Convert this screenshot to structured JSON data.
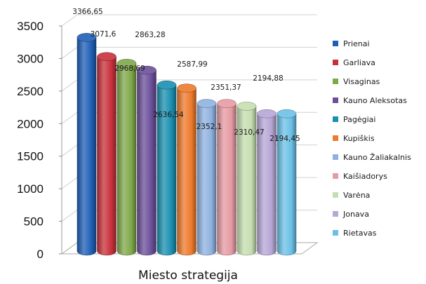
{
  "chart_data": {
    "type": "bar",
    "style": "3d-cylinder",
    "xlabel": "Miesto strategija",
    "ylabel": "",
    "ylim": [
      0,
      3500
    ],
    "yticks": [
      0,
      500,
      1000,
      1500,
      2000,
      2500,
      3000,
      3500
    ],
    "grid": true,
    "legend_position": "right",
    "categories": [
      "Prienai",
      "Garliava",
      "Visaginas",
      "Kauno Aleksotas",
      "Pagėgiai",
      "Kupiškis",
      "Kauno Žaliakalnis",
      "Kaišiadorys",
      "Varėna",
      "Jonava",
      "Rietavas"
    ],
    "values": [
      3366.65,
      3071.6,
      2968.69,
      2863.28,
      2636.54,
      2587.99,
      2352.1,
      2351.37,
      2310.47,
      2194.88,
      2194.45
    ],
    "value_labels": [
      "3366,65",
      "3071,6",
      "2968,69",
      "2863,28",
      "2636,54",
      "2587,99",
      "2352,1",
      "2351,37",
      "2310,47",
      "2194,88",
      "2194,45"
    ],
    "colors": [
      "#1f5fb5",
      "#c8303a",
      "#7fa84a",
      "#6b4f9a",
      "#1a8fb0",
      "#ee7a2c",
      "#8fb1e0",
      "#e69aa3",
      "#c5deb0",
      "#b7a6d6",
      "#6cc0e6"
    ]
  }
}
